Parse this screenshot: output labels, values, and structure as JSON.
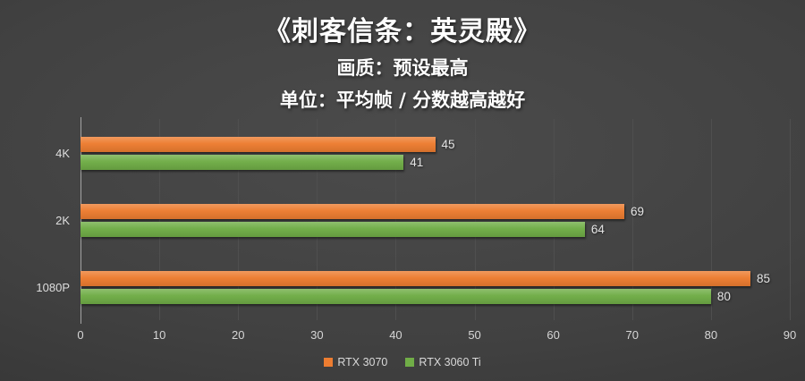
{
  "header": {
    "title": "《刺客信条：英灵殿》",
    "subtitle": "画质：预设最高",
    "unit_note": "单位：平均帧 / 分数越高越好"
  },
  "chart_data": {
    "type": "bar",
    "orientation": "horizontal",
    "title": "《刺客信条：英灵殿》",
    "subtitle": "画质：预设最高",
    "unit_note": "单位：平均帧 / 分数越高越好",
    "categories": [
      "4K",
      "2K",
      "1080P"
    ],
    "series": [
      {
        "name": "RTX 3070",
        "color": "#ED7D31",
        "values": [
          45,
          69,
          85
        ]
      },
      {
        "name": "RTX 3060 Ti",
        "color": "#70AD47",
        "values": [
          41,
          64,
          80
        ]
      }
    ],
    "value_labels_shown": true,
    "xlim": [
      0,
      90
    ],
    "xticks": [
      0,
      10,
      20,
      30,
      40,
      50,
      60,
      70,
      80,
      90
    ],
    "grid": true,
    "legend_position": "bottom",
    "background_color": "#3f3f3f",
    "text_color": "#e4e4e4"
  }
}
